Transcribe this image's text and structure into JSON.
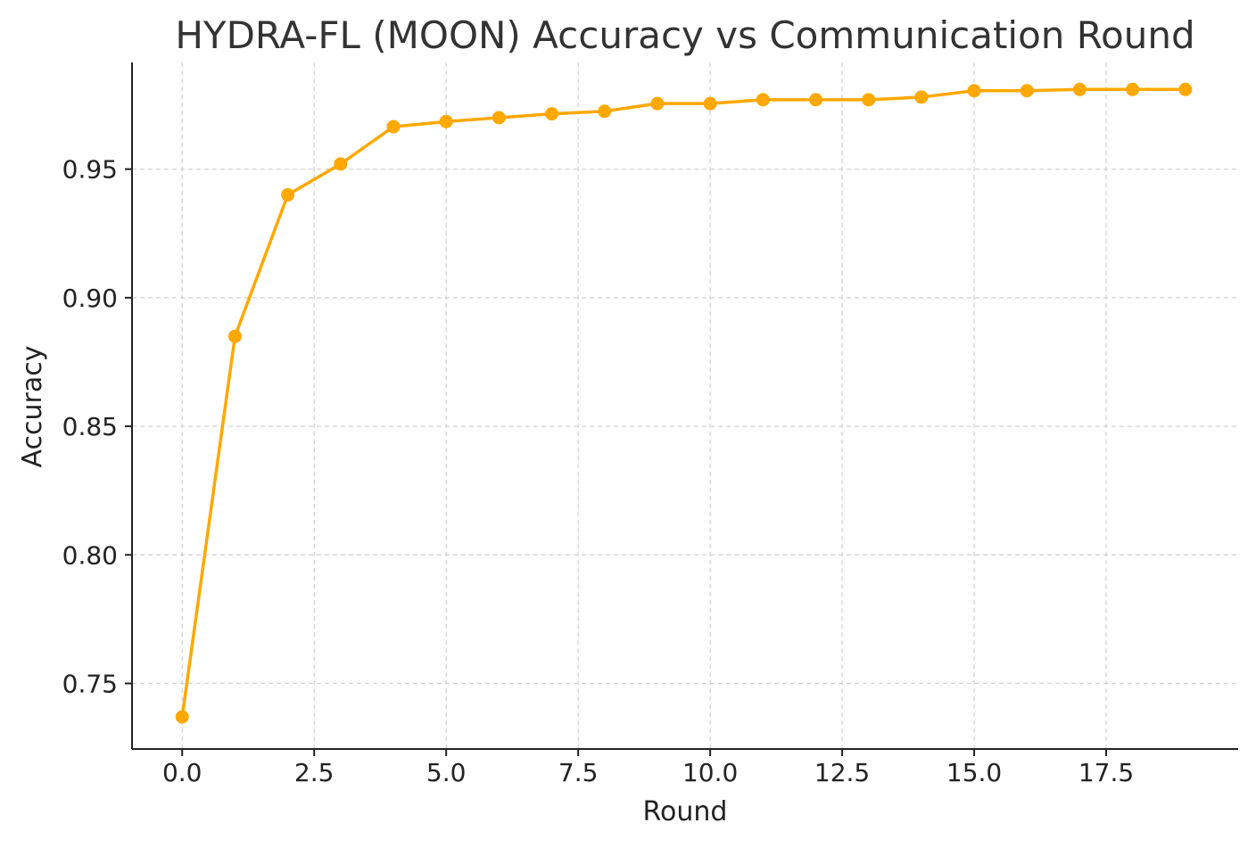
{
  "chart_data": {
    "type": "line",
    "title": "HYDRA-FL (MOON) Accuracy vs Communication Round",
    "xlabel": "Round",
    "ylabel": "Accuracy",
    "xlim": [
      -0.95,
      20.0
    ],
    "ylim": [
      0.7245,
      0.9915
    ],
    "xticks": [
      0.0,
      2.5,
      5.0,
      7.5,
      10.0,
      12.5,
      15.0,
      17.5
    ],
    "xtick_labels": [
      "0.0",
      "2.5",
      "5.0",
      "7.5",
      "10.0",
      "12.5",
      "15.0",
      "17.5"
    ],
    "yticks": [
      0.75,
      0.8,
      0.85,
      0.9,
      0.95
    ],
    "ytick_labels": [
      "0.75",
      "0.80",
      "0.85",
      "0.90",
      "0.95"
    ],
    "grid": true,
    "grid_style": "dashed",
    "legend": false,
    "series": [
      {
        "x": [
          0,
          1,
          2,
          3,
          4,
          5,
          6,
          7,
          8,
          9,
          10,
          11,
          12,
          13,
          14,
          15,
          16,
          17,
          18,
          19
        ],
        "values": [
          0.737,
          0.885,
          0.94,
          0.952,
          0.9665,
          0.9685,
          0.97,
          0.9715,
          0.9725,
          0.9755,
          0.9755,
          0.977,
          0.977,
          0.977,
          0.978,
          0.9805,
          0.9805,
          0.981,
          0.981,
          0.981
        ],
        "color": "#FFA800",
        "marker": "circle"
      }
    ]
  }
}
